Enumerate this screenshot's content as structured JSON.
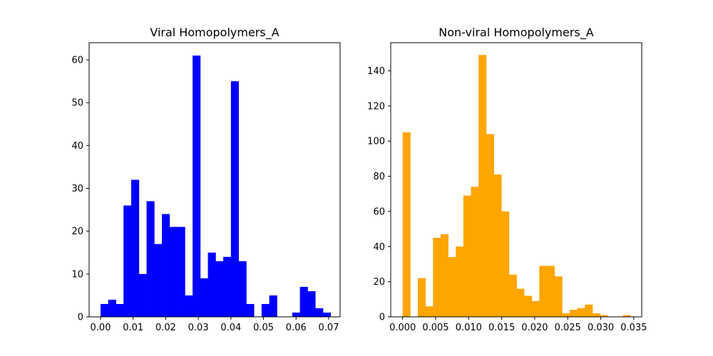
{
  "chart_data": [
    {
      "type": "bar",
      "title": "Viral Homopolymers_A",
      "color": "#0000ff",
      "xlim": [
        -0.0035,
        0.0735
      ],
      "ylim": [
        0,
        64
      ],
      "xticks": [
        0.0,
        0.01,
        0.02,
        0.03,
        0.04,
        0.05,
        0.06,
        0.07
      ],
      "xtick_labels": [
        "0.00",
        "0.01",
        "0.02",
        "0.03",
        "0.04",
        "0.05",
        "0.06",
        "0.07"
      ],
      "yticks": [
        0,
        10,
        20,
        30,
        40,
        50,
        60
      ],
      "ytick_labels": [
        "0",
        "10",
        "20",
        "30",
        "40",
        "50",
        "60"
      ],
      "bin_start": 0.0,
      "bin_width": 0.002353,
      "values": [
        3,
        4,
        3,
        26,
        32,
        10,
        27,
        17,
        24,
        21,
        21,
        5,
        61,
        9,
        15,
        13,
        14,
        55,
        13,
        3,
        0,
        3,
        5,
        0,
        0,
        1,
        7,
        6,
        2,
        1
      ]
    },
    {
      "type": "bar",
      "title": "Non-viral Homopolymers_A",
      "color": "#ffa500",
      "xlim": [
        -0.0018,
        0.0362
      ],
      "ylim": [
        0,
        156
      ],
      "xticks": [
        0.0,
        0.005,
        0.01,
        0.015,
        0.02,
        0.025,
        0.03,
        0.035
      ],
      "xtick_labels": [
        "0.000",
        "0.005",
        "0.010",
        "0.015",
        "0.020",
        "0.025",
        "0.030",
        "0.035"
      ],
      "yticks": [
        0,
        20,
        40,
        60,
        80,
        100,
        120,
        140
      ],
      "ytick_labels": [
        "0",
        "20",
        "40",
        "60",
        "80",
        "100",
        "120",
        "140"
      ],
      "bin_start": 0.0,
      "bin_width": 0.00115,
      "values": [
        105,
        0,
        22,
        6,
        45,
        47,
        34,
        40,
        69,
        74,
        149,
        104,
        81,
        60,
        24,
        16,
        12,
        9,
        29,
        29,
        23,
        2,
        4,
        5,
        7,
        2,
        1,
        0,
        0,
        1
      ]
    }
  ]
}
